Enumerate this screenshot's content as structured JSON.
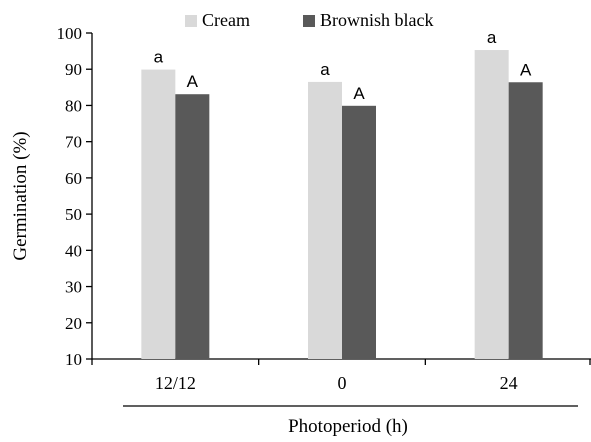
{
  "chart_data": {
    "type": "bar",
    "categories": [
      "12/12",
      "0",
      "24"
    ],
    "series": [
      {
        "name": "Cream",
        "values": [
          89.9,
          86.5,
          95.3
        ],
        "letters": [
          "a",
          "a",
          "a"
        ],
        "color": "#d9d9d9"
      },
      {
        "name": "Brownish black",
        "values": [
          83.1,
          79.9,
          86.4
        ],
        "letters": [
          "A",
          "A",
          "A"
        ],
        "color": "#595959"
      }
    ],
    "xlabel": "Photoperiod (h)",
    "ylabel": "Germination (%)",
    "ylim": [
      10,
      100
    ],
    "yticks": [
      10,
      20,
      30,
      40,
      50,
      60,
      70,
      80,
      90,
      100
    ],
    "grid": false,
    "legend_position": "top"
  }
}
